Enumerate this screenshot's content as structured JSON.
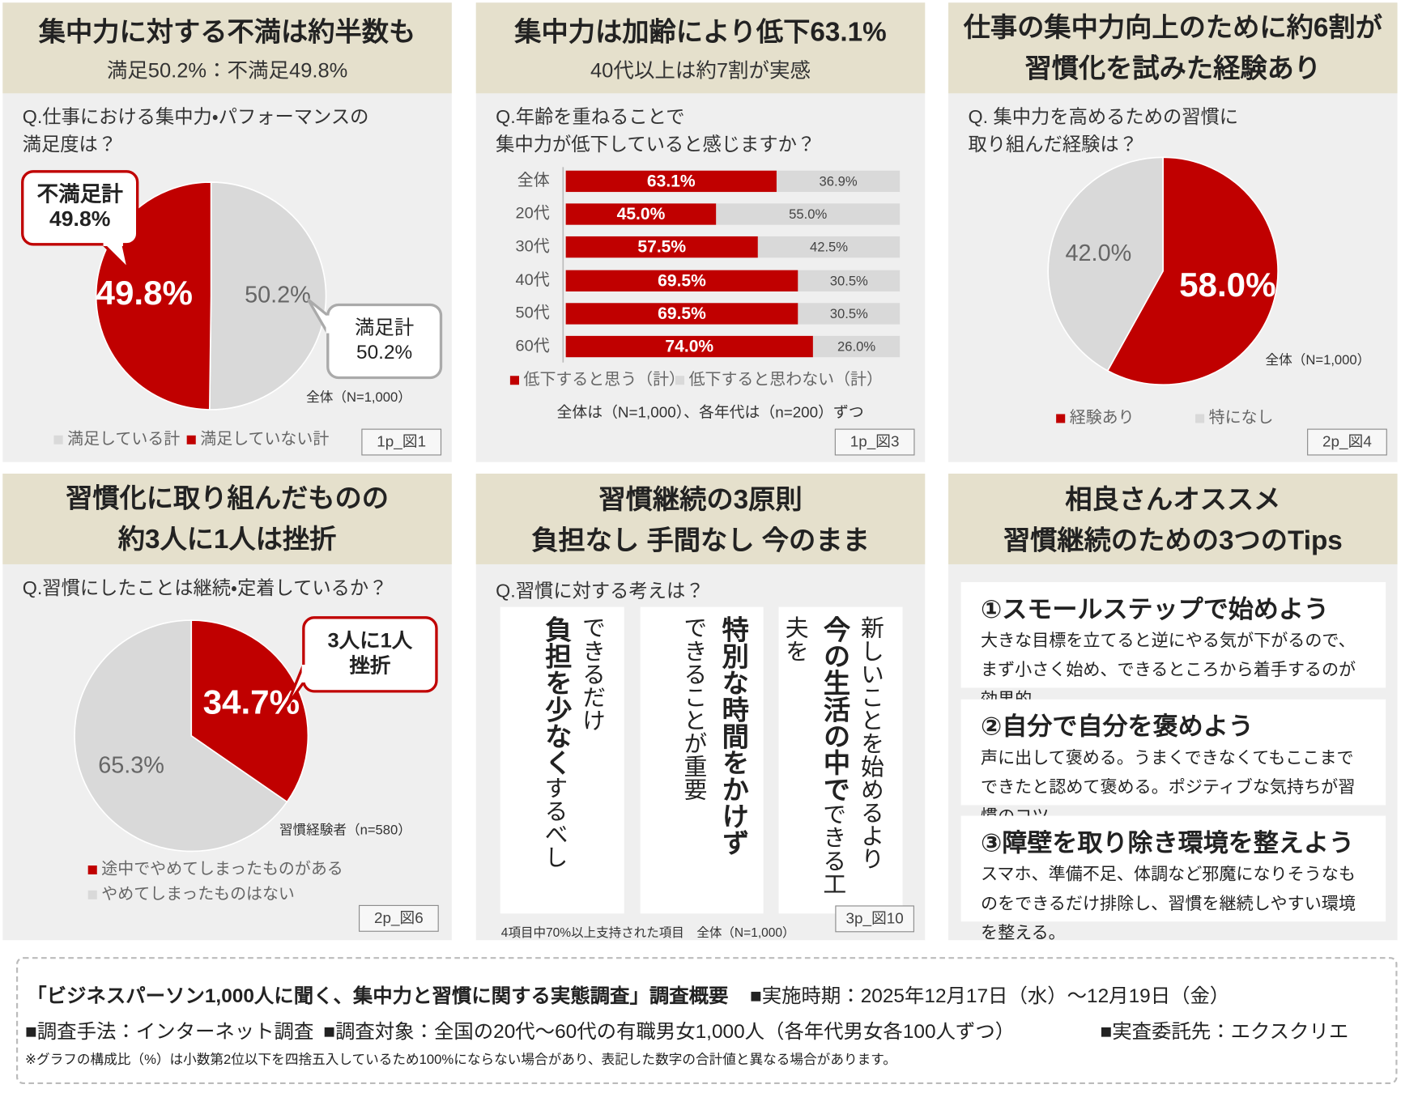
{
  "chart_data": [
    {
      "type": "pie",
      "title": [
        "集中力に対する不満は約半数も"
      ],
      "subtitle": "満足50.2%：不満足49.8%",
      "question": [
        "Q.仕事における集中力・パフォーマンスの",
        "満足度は？"
      ],
      "categories": [
        "満足している計",
        "満足していない計"
      ],
      "values": [
        50.2,
        49.8
      ],
      "value_labels": [
        "50.2%",
        "49.8%"
      ],
      "colors": [
        "#d9d9d9",
        "#c00000"
      ],
      "callouts": [
        [
          "不満足計",
          "49.8%"
        ],
        [
          "満足計",
          "50.2%"
        ]
      ],
      "note": "全体（N=1,000）",
      "figure": "1p_図1"
    },
    {
      "type": "bar",
      "orientation": "horizontal",
      "stacked": true,
      "title": [
        "集中力は加齢により低下63.1%"
      ],
      "subtitle": "40代以上は約7割が実感",
      "question": [
        "Q.年齢を重ねることで",
        "集中力が低下していると感じますか？"
      ],
      "categories": [
        "全体",
        "20代",
        "30代",
        "40代",
        "50代",
        "60代"
      ],
      "series": [
        {
          "name": "低下すると思う（計）",
          "color": "#c00000",
          "values": [
            63.1,
            45.0,
            57.5,
            69.5,
            69.5,
            74.0
          ],
          "value_labels": [
            "63.1%",
            "45.0%",
            "57.5%",
            "69.5%",
            "69.5%",
            "74.0%"
          ]
        },
        {
          "name": "低下すると思わない（計）",
          "color": "#d9d9d9",
          "values": [
            36.9,
            55.0,
            42.5,
            30.5,
            30.5,
            26.0
          ],
          "value_labels": [
            "36.9%",
            "55.0%",
            "42.5%",
            "30.5%",
            "30.5%",
            "26.0%"
          ]
        }
      ],
      "xlim": [
        0,
        100
      ],
      "note": "全体は（N=1,000）、各年代は（n=200）ずつ",
      "figure": "1p_図3"
    },
    {
      "type": "pie",
      "title": [
        "仕事の集中力向上のために約6割が",
        "習慣化を試みた経験あり"
      ],
      "question": [
        "Q. 集中力を高めるための習慣に",
        "取り組んだ経験は？"
      ],
      "categories": [
        "経験あり",
        "特になし"
      ],
      "values": [
        58.0,
        42.0
      ],
      "value_labels": [
        "58.0%",
        "42.0%"
      ],
      "colors": [
        "#c00000",
        "#d9d9d9"
      ],
      "note": "全体（N=1,000）",
      "figure": "2p_図4"
    },
    {
      "type": "pie",
      "title": [
        "習慣化に取り組んだものの",
        "約3人に1人は挫折"
      ],
      "question": [
        "Q.習慣にしたことは継続・定着しているか？"
      ],
      "categories": [
        "途中でやめてしまったものがある",
        "やめてしまったものはない"
      ],
      "values": [
        34.7,
        65.3
      ],
      "value_labels": [
        "34.7%",
        "65.3%"
      ],
      "colors": [
        "#c00000",
        "#d9d9d9"
      ],
      "callouts": [
        [
          "3人に1人",
          "挫折"
        ]
      ],
      "note": "習慣経験者（n=580）",
      "figure": "2p_図6"
    }
  ],
  "principles": {
    "title": [
      "習慣継続の3原則",
      "負担なし 手間なし 今のまま"
    ],
    "question": "Q.習慣に対する考えは？",
    "cards": [
      {
        "lines": [
          {
            "text": "できるだけ"
          },
          {
            "bold": "負担を少なく",
            "text": "するべし"
          }
        ]
      },
      {
        "lines": [
          {
            "bold": "特別な時間をかけず"
          },
          {
            "text": "できることが重要"
          }
        ]
      },
      {
        "lines": [
          {
            "text": "新しいことを始めるより"
          },
          {
            "bold": "今の生活の中で",
            "text": "できる工夫を"
          }
        ]
      }
    ],
    "note": "4項目中70%以上支持された項目　全体（N=1,000）",
    "figure": "3p_図10"
  },
  "tips": {
    "title": [
      "相良さんオススメ",
      "習慣継続のための3つのTips"
    ],
    "items": [
      {
        "heading": "①スモールステップで始めよう",
        "body": "大きな目標を立てると逆にやる気が下がるので、まず小さく始め、できるところから着手するのが効果的。"
      },
      {
        "heading": "②自分で自分を褒めよう",
        "body": "声に出して褒める。うまくできなくてもここまでできたと認めて褒める。ポジティブな気持ちが習慣のコツ。"
      },
      {
        "heading": "③障壁を取り除き環境を整えよう",
        "body": "スマホ、準備不足、体調など邪魔になりそうなものをできるだけ排除し、習慣を継続しやすい環境を整える。"
      }
    ]
  },
  "footer": {
    "title": "「ビジネスパーソン1,000人に聞く、集中力と習慣に関する実態調査」調査概要",
    "period": "■実施時期：2025年12月17日（水）～12月19日（金）",
    "items": [
      "■調査手法：インターネット調査",
      "■調査対象：全国の20代～60代の有職男女1,000人（各年代男女各100人ずつ）",
      "■実査委託先：エクスクリエ"
    ],
    "remark": "※グラフの構成比（%）は小数第2位以下を四捨五入しているため100%にならない場合があり、表記した数字の合計値と異なる場合があります。"
  }
}
